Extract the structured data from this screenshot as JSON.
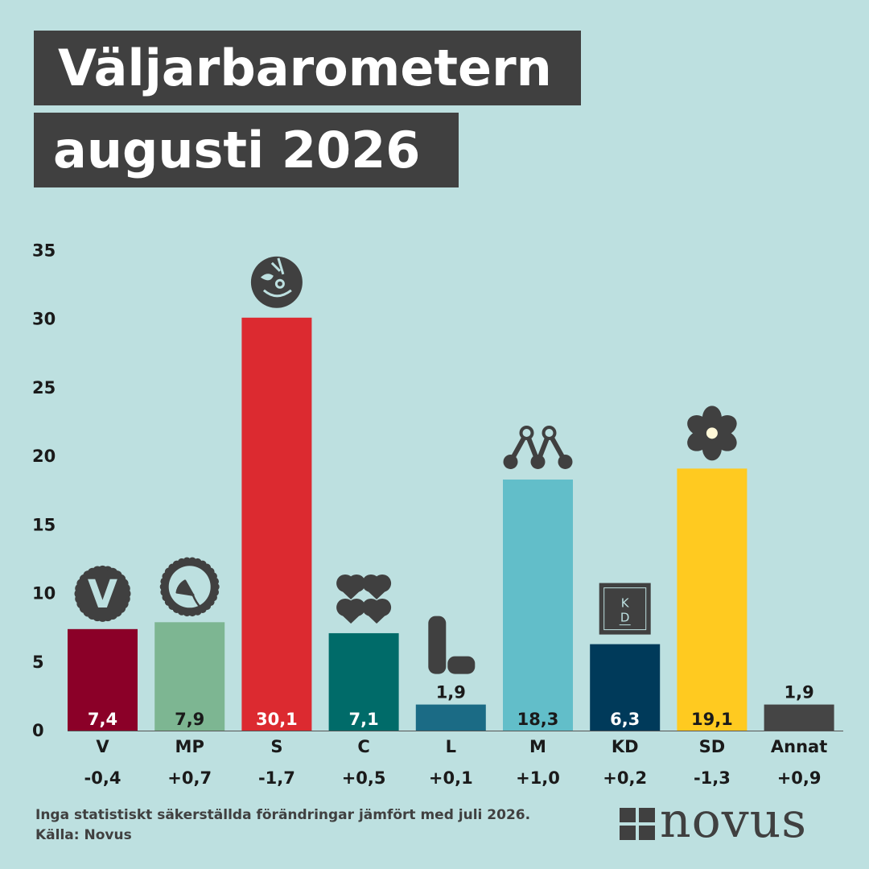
{
  "title": {
    "line1": "Väljarbarometern",
    "line2": "augusti 2026"
  },
  "footer": {
    "note": "Inga statistiskt säkerställda förändringar jämfört med juli 2026.",
    "source": "Källa: Novus",
    "brand": "novus"
  },
  "chart_data": {
    "type": "bar",
    "categories": [
      "V",
      "MP",
      "S",
      "C",
      "L",
      "M",
      "KD",
      "SD",
      "Annat"
    ],
    "values": [
      7.4,
      7.9,
      30.1,
      7.1,
      1.9,
      18.3,
      6.3,
      19.1,
      1.9
    ],
    "value_labels": [
      "7,4",
      "7,9",
      "30,1",
      "7,1",
      "1,9",
      "18,3",
      "6,3",
      "19,1",
      "1,9"
    ],
    "changes": [
      "-0,4",
      "+0,7",
      "-1,7",
      "+0,5",
      "+0,1",
      "+1,0",
      "+0,2",
      "-1,3",
      "+0,9"
    ],
    "colors": [
      "#8b0028",
      "#7db692",
      "#dc2a30",
      "#006b69",
      "#1b6b85",
      "#62bec9",
      "#003a5a",
      "#ffca20",
      "#454545"
    ],
    "label_colors": [
      "#ffffff",
      "#1a1a1a",
      "#ffffff",
      "#ffffff",
      "#1a1a1a",
      "#1a1a1a",
      "#ffffff",
      "#1a1a1a",
      "#1a1a1a"
    ],
    "label_inside": [
      true,
      true,
      true,
      true,
      false,
      true,
      true,
      true,
      false
    ],
    "icons": [
      "v-logo-icon",
      "mp-dandelion-icon",
      "s-rose-icon",
      "c-clover-icon",
      "l-logo-icon",
      "m-logo-icon",
      "kd-logo-icon",
      "sd-flower-icon",
      null
    ],
    "ylim": [
      0,
      35
    ],
    "yticks": [
      0,
      5,
      10,
      15,
      20,
      25,
      30,
      35
    ],
    "grid": false,
    "xlabel": "",
    "ylabel": "",
    "title": ""
  }
}
